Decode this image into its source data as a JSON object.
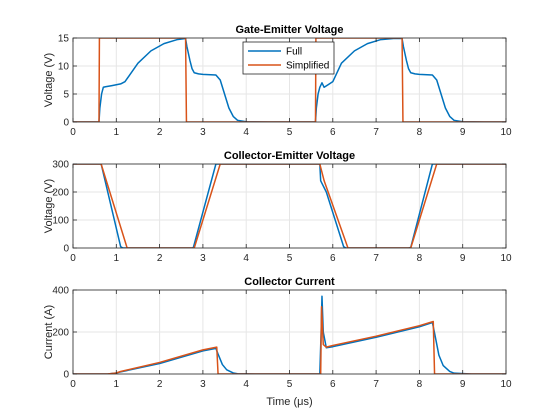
{
  "figure": {
    "xlabel": "Time (μs)"
  },
  "legend": {
    "placement": "top-center, inside first subplot",
    "entries": [
      "Full",
      "Simplified"
    ]
  },
  "colors": {
    "Full": "#0072BD",
    "Simplified": "#D95319",
    "grid": "#e6e6e6",
    "axis": "#262626"
  },
  "chart_data": [
    {
      "type": "line",
      "title": "Gate-Emitter Voltage",
      "xlabel": "",
      "ylabel": "Voltage (V)",
      "xlim": [
        0,
        10
      ],
      "ylim": [
        0,
        15
      ],
      "xticks": [
        0,
        1,
        2,
        3,
        4,
        5,
        6,
        7,
        8,
        9,
        10
      ],
      "yticks": [
        0,
        5,
        10,
        15
      ],
      "grid": true,
      "series": [
        {
          "name": "Full",
          "x": [
            0,
            0.6,
            0.62,
            0.66,
            0.7,
            0.75,
            0.9,
            1.1,
            1.2,
            1.5,
            1.8,
            2.1,
            2.4,
            2.6,
            2.63,
            2.7,
            2.75,
            2.8,
            2.9,
            3.0,
            3.3,
            3.4,
            3.5,
            3.6,
            3.7,
            3.8,
            4.0,
            4.5,
            5.6,
            5.62,
            5.66,
            5.7,
            5.75,
            5.8,
            5.9,
            6.0,
            6.2,
            6.5,
            6.8,
            7.1,
            7.4,
            7.6,
            7.63,
            7.7,
            7.75,
            7.8,
            7.9,
            8.0,
            8.3,
            8.4,
            8.5,
            8.6,
            8.7,
            8.8,
            9.0,
            9.5,
            10
          ],
          "y": [
            0,
            0,
            2.5,
            5,
            6.2,
            6.3,
            6.5,
            6.8,
            7.2,
            10.5,
            12.7,
            14.0,
            14.7,
            14.9,
            13.5,
            11.0,
            9.5,
            8.8,
            8.6,
            8.5,
            8.4,
            7.5,
            5.0,
            2.5,
            1.0,
            0.3,
            0.05,
            0,
            0,
            2.5,
            5,
            6.2,
            7.0,
            6.2,
            6.7,
            7.2,
            10.5,
            12.7,
            14.0,
            14.7,
            14.9,
            14.9,
            13.5,
            11.0,
            9.5,
            8.8,
            8.6,
            8.5,
            8.4,
            7.5,
            5.0,
            2.5,
            1.0,
            0.3,
            0.05,
            0,
            0
          ]
        },
        {
          "name": "Simplified",
          "x": [
            0,
            0.6,
            0.61,
            2.6,
            2.62,
            5.6,
            5.61,
            7.6,
            7.62,
            10
          ],
          "y": [
            0,
            0,
            15,
            15,
            0,
            0,
            15,
            15,
            0,
            0
          ]
        }
      ]
    },
    {
      "type": "line",
      "title": "Collector-Emitter Voltage",
      "xlabel": "",
      "ylabel": "Voltage (V)",
      "xlim": [
        0,
        10
      ],
      "ylim": [
        0,
        300
      ],
      "xticks": [
        0,
        1,
        2,
        3,
        4,
        5,
        6,
        7,
        8,
        9,
        10
      ],
      "yticks": [
        0,
        100,
        200,
        300
      ],
      "grid": true,
      "series": [
        {
          "name": "Full",
          "x": [
            0,
            0.65,
            1.1,
            1.15,
            2.75,
            2.78,
            3.3,
            3.35,
            5.7,
            5.72,
            5.85,
            6.25,
            6.3,
            7.75,
            7.8,
            8.3,
            8.35,
            10
          ],
          "y": [
            300,
            300,
            5,
            0,
            0,
            2,
            300,
            300,
            300,
            240,
            200,
            5,
            0,
            0,
            2,
            300,
            300,
            300
          ]
        },
        {
          "name": "Simplified",
          "x": [
            0,
            0.65,
            1.25,
            2.8,
            3.4,
            5.7,
            5.8,
            6.35,
            7.8,
            8.4,
            10
          ],
          "y": [
            300,
            300,
            0,
            0,
            300,
            300,
            240,
            0,
            0,
            300,
            300
          ]
        }
      ]
    },
    {
      "type": "line",
      "title": "Collector Current",
      "xlabel": "Time (μs)",
      "ylabel": "Current (A)",
      "xlim": [
        0,
        10
      ],
      "ylim": [
        0,
        400
      ],
      "xticks": [
        0,
        1,
        2,
        3,
        4,
        5,
        6,
        7,
        8,
        9,
        10
      ],
      "yticks": [
        0,
        200,
        400
      ],
      "grid": true,
      "series": [
        {
          "name": "Full",
          "x": [
            0,
            0.8,
            1.0,
            1.1,
            2.0,
            3.0,
            3.3,
            3.35,
            3.45,
            3.55,
            3.7,
            3.8,
            4.2,
            5.7,
            5.73,
            5.75,
            5.78,
            5.85,
            6.0,
            7.0,
            8.0,
            8.3,
            8.35,
            8.45,
            8.55,
            8.7,
            8.8,
            9.2,
            10
          ],
          "y": [
            0,
            0,
            5,
            10,
            50,
            110,
            122,
            95,
            45,
            20,
            5,
            1,
            0,
            0,
            200,
            370,
            200,
            125,
            130,
            175,
            225,
            245,
            195,
            90,
            40,
            12,
            4,
            0,
            0
          ]
        },
        {
          "name": "Simplified",
          "x": [
            0,
            0.8,
            1.0,
            1.1,
            2.0,
            3.0,
            3.32,
            3.35,
            5.72,
            5.74,
            5.78,
            5.85,
            6.0,
            7.0,
            8.0,
            8.32,
            8.35,
            10
          ],
          "y": [
            0,
            0,
            5,
            12,
            55,
            115,
            128,
            0,
            0,
            320,
            140,
            128,
            136,
            180,
            230,
            250,
            0,
            0
          ]
        }
      ]
    }
  ]
}
